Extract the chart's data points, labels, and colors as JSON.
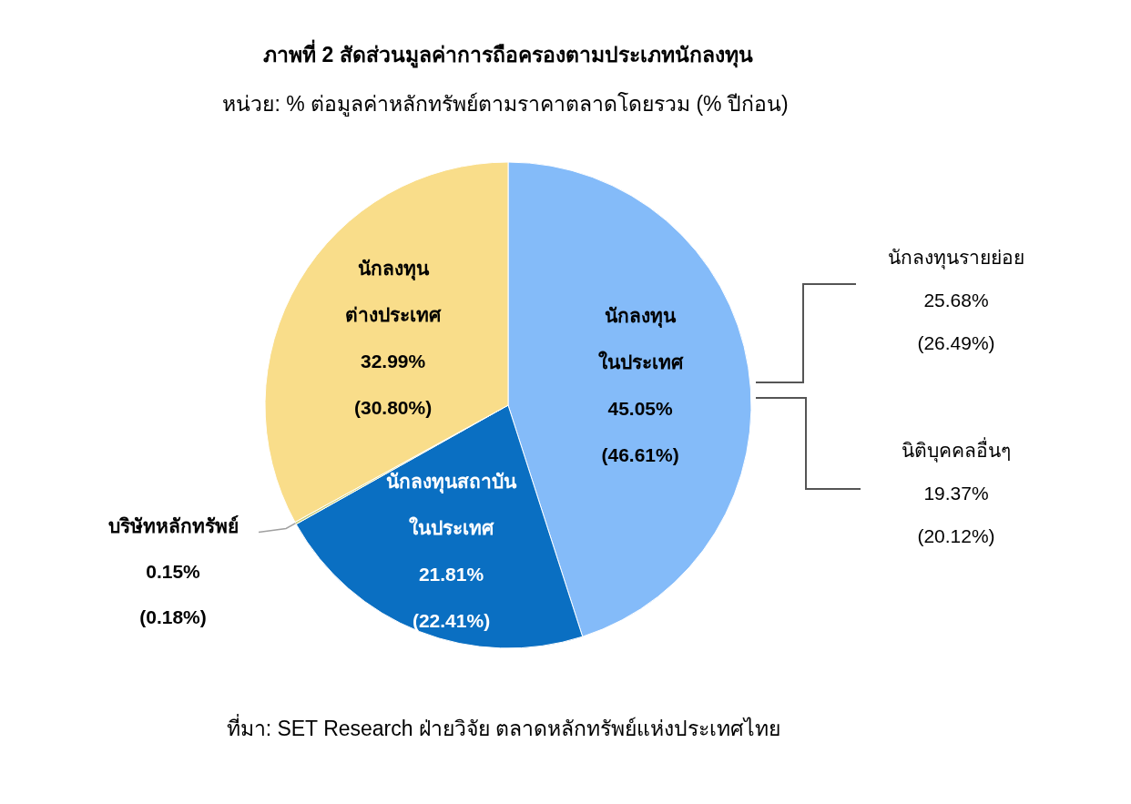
{
  "chart_data": {
    "type": "pie",
    "title": "ภาพที่ 2 สัดส่วนมูลค่าการถือครองตามประเภทนักลงทุน",
    "subtitle": "หน่วย: % ต่อมูลค่าหลักทรัพย์ตามราคาตลาดโดยรวม (% ปีก่อน)",
    "categories": [
      "นักลงทุน\nในประเทศ",
      "นักลงทุนสถาบัน\nในประเทศ",
      "บริษัทหลักทรัพย์",
      "นักลงทุน\nต่างประเทศ"
    ],
    "values": [
      45.05,
      21.81,
      0.15,
      32.99
    ],
    "colors": [
      "#84bbf9",
      "#0a6fc2",
      "#c9cf7a",
      "#f9dd8a"
    ],
    "value_labels": [
      "45.05%\n(46.61%)",
      "21.81%\n(22.41%)",
      "0.15%\n(0.18%)",
      "32.99%\n(30.80%)"
    ],
    "annotations": [
      "นักลงทุนรายย่อย\n25.68%\n(26.49%)",
      "นิติบุคคลอื่นๆ\n19.37%\n(20.12%)",
      "ที่มา: SET Research ฝ่ายวิจัย ตลาดหลักทรัพย์แห่งประเทศไทย"
    ]
  }
}
